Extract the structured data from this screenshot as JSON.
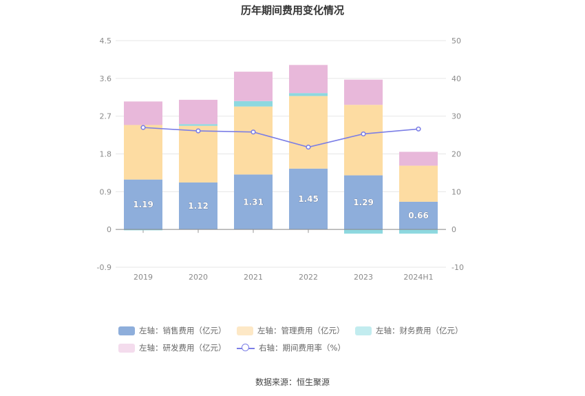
{
  "title": "历年期间费用变化情况",
  "source": "数据来源：恒生聚源",
  "chart_data": {
    "type": "bar",
    "stacked": true,
    "categories": [
      "2019",
      "2020",
      "2021",
      "2022",
      "2023",
      "2024H1"
    ],
    "left_axis": {
      "min": -0.9,
      "max": 4.5,
      "ticks": [
        "-0.9",
        "0",
        "0.9",
        "1.8",
        "2.7",
        "3.6",
        "4.5"
      ]
    },
    "right_axis": {
      "min": -10,
      "max": 50,
      "ticks": [
        "-10",
        "0",
        "10",
        "20",
        "30",
        "40",
        "50"
      ]
    },
    "grid": true,
    "legend_position": "bottom",
    "series": [
      {
        "name": "左轴：销售费用（亿元）",
        "axis": "left",
        "color": "#8eaedb",
        "values": [
          1.19,
          1.12,
          1.31,
          1.45,
          1.29,
          0.66
        ],
        "labels": [
          "1.19",
          "1.12",
          "1.31",
          "1.45",
          "1.29",
          "0.66"
        ]
      },
      {
        "name": "左轴：管理费用（亿元）",
        "axis": "left",
        "color": "#fddca2",
        "values": [
          1.3,
          1.35,
          1.62,
          1.73,
          1.68,
          0.86
        ]
      },
      {
        "name": "左轴：财务费用（亿元）",
        "axis": "left",
        "color": "#8dd8df",
        "values": [
          -0.02,
          0.04,
          0.13,
          0.07,
          -0.1,
          -0.1
        ]
      },
      {
        "name": "左轴：研发费用（亿元）",
        "axis": "left",
        "color": "#e8b8da",
        "values": [
          0.56,
          0.58,
          0.7,
          0.67,
          0.6,
          0.33
        ]
      },
      {
        "name": "右轴：期间费用率（%）",
        "axis": "right",
        "type": "line",
        "color": "#7b7ee6",
        "values": [
          27.0,
          26.1,
          25.8,
          21.8,
          25.3,
          26.6
        ]
      }
    ]
  }
}
